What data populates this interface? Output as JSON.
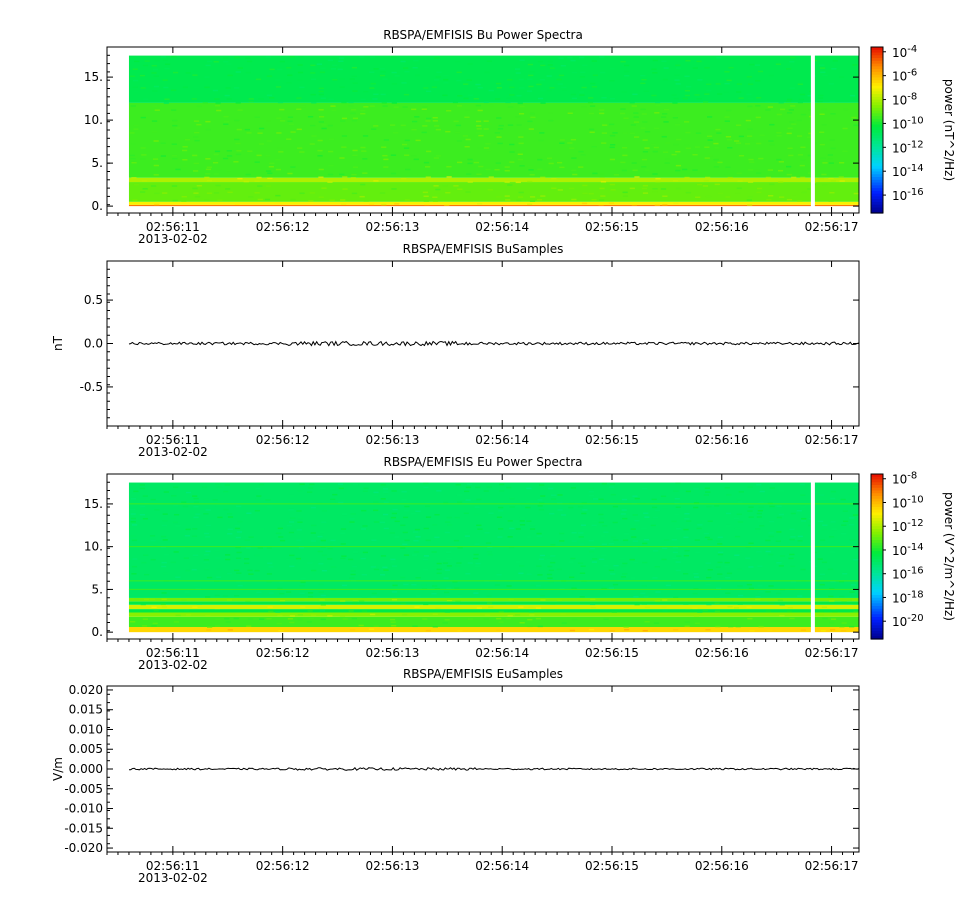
{
  "chart_data": [
    {
      "type": "heatmap",
      "title": "RBSPA/EMFISIS  Bu Power Spectra",
      "xlabel": "",
      "ylabel": "",
      "x_ticks": [
        "02:56:11",
        "02:56:12",
        "02:56:13",
        "02:56:14",
        "02:56:15",
        "02:56:16",
        "02:56:17"
      ],
      "date_label": "2013-02-02",
      "x_range": [
        "02:56:10.40",
        "02:56:17.25"
      ],
      "data_x_range": [
        "02:56:10.60",
        "02:56:17.25"
      ],
      "gap_at": "02:56:16.83",
      "y_ticks": [
        "0.",
        "5.",
        "10.",
        "15."
      ],
      "ylim": [
        -0.8,
        18.5
      ],
      "data_ylim": [
        0,
        17.5
      ],
      "colorbar": {
        "label": "power (nT^2/Hz)",
        "ticks": [
          {
            "base": "10",
            "exp": "-4"
          },
          {
            "base": "10",
            "exp": "-6"
          },
          {
            "base": "10",
            "exp": "-8"
          },
          {
            "base": "10",
            "exp": "-10"
          },
          {
            "base": "10",
            "exp": "-12"
          },
          {
            "base": "10",
            "exp": "-14"
          },
          {
            "base": "10",
            "exp": "-16"
          }
        ],
        "range_log10": [
          -17.5,
          -3.6
        ]
      },
      "bands": [
        {
          "from": 0,
          "to": 0.15,
          "level": -5
        },
        {
          "from": 0.15,
          "to": 0.5,
          "level": -7
        },
        {
          "from": 0.5,
          "to": 2.8,
          "level": -9
        },
        {
          "from": 2.8,
          "to": 3.3,
          "level": -8
        },
        {
          "from": 3.3,
          "to": 12.0,
          "level": -9.5
        },
        {
          "from": 12.0,
          "to": 17.5,
          "level": -10.6
        }
      ]
    },
    {
      "type": "line",
      "title": "RBSPA/EMFISIS  BuSamples",
      "xlabel": "",
      "ylabel": "nT",
      "x_ticks": [
        "02:56:11",
        "02:56:12",
        "02:56:13",
        "02:56:14",
        "02:56:15",
        "02:56:16",
        "02:56:17"
      ],
      "date_label": "2013-02-02",
      "x_range": [
        "02:56:10.40",
        "02:56:17.25"
      ],
      "data_x_range": [
        "02:56:10.60",
        "02:56:17.25"
      ],
      "y_ticks": [
        "0.5",
        "0.0",
        "-0.5"
      ],
      "ylim": [
        -0.95,
        0.95
      ],
      "baseline": 0.0,
      "noise_amplitude": 0.015
    },
    {
      "type": "heatmap",
      "title": "RBSPA/EMFISIS  Eu Power Spectra",
      "xlabel": "",
      "ylabel": "",
      "x_ticks": [
        "02:56:11",
        "02:56:12",
        "02:56:13",
        "02:56:14",
        "02:56:15",
        "02:56:16",
        "02:56:17"
      ],
      "date_label": "2013-02-02",
      "x_range": [
        "02:56:10.40",
        "02:56:17.25"
      ],
      "data_x_range": [
        "02:56:10.60",
        "02:56:17.25"
      ],
      "gap_at": "02:56:16.83",
      "y_ticks": [
        "0.",
        "5.",
        "10.",
        "15."
      ],
      "ylim": [
        -0.8,
        18.5
      ],
      "data_ylim": [
        0,
        17.5
      ],
      "colorbar": {
        "label": "power (V^2/m^2/Hz)",
        "ticks": [
          {
            "base": "10",
            "exp": "-8"
          },
          {
            "base": "10",
            "exp": "-10"
          },
          {
            "base": "10",
            "exp": "-12"
          },
          {
            "base": "10",
            "exp": "-14"
          },
          {
            "base": "10",
            "exp": "-16"
          },
          {
            "base": "10",
            "exp": "-18"
          },
          {
            "base": "10",
            "exp": "-20"
          }
        ],
        "range_log10": [
          -21.5,
          -7.6
        ]
      },
      "bands": [
        {
          "from": 0,
          "to": 0.6,
          "level": -10.5
        },
        {
          "from": 0.6,
          "to": 1.8,
          "level": -13.5
        },
        {
          "from": 1.8,
          "to": 2.3,
          "level": -12.5
        },
        {
          "from": 2.3,
          "to": 2.7,
          "level": -14.5
        },
        {
          "from": 2.7,
          "to": 3.2,
          "level": -11.5
        },
        {
          "from": 3.2,
          "to": 3.6,
          "level": -14.5
        },
        {
          "from": 3.6,
          "to": 4.0,
          "level": -12.8
        },
        {
          "from": 4.0,
          "to": 17.5,
          "level": -15.0
        }
      ],
      "lines": [
        5.0,
        6.0,
        10.0,
        15.0
      ]
    },
    {
      "type": "line",
      "title": "RBSPA/EMFISIS  EuSamples",
      "xlabel": "",
      "ylabel": "V/m",
      "x_ticks": [
        "02:56:11",
        "02:56:12",
        "02:56:13",
        "02:56:14",
        "02:56:15",
        "02:56:16",
        "02:56:17"
      ],
      "date_label": "2013-02-02",
      "x_range": [
        "02:56:10.40",
        "02:56:17.25"
      ],
      "data_x_range": [
        "02:56:10.60",
        "02:56:17.25"
      ],
      "y_ticks": [
        "0.020",
        "0.015",
        "0.010",
        "0.005",
        "0.000",
        "-0.005",
        "-0.010",
        "-0.015",
        "-0.020"
      ],
      "ylim": [
        -0.021,
        0.021
      ],
      "baseline": 0.0,
      "noise_amplitude": 0.0002
    }
  ]
}
